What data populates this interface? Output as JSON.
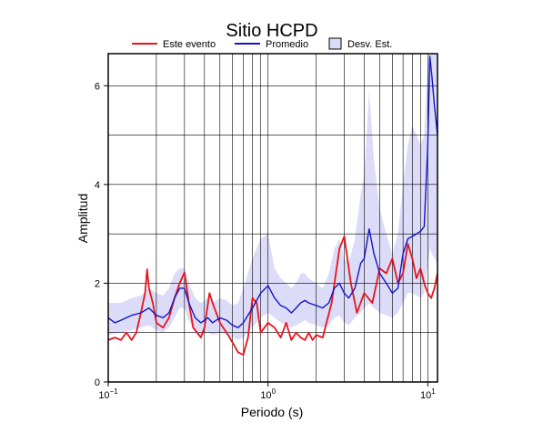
{
  "chart_data": {
    "type": "line",
    "title": "Sitio HCPD",
    "xlabel": "Periodo (s)",
    "ylabel": "Amplitud",
    "xscale": "log",
    "xlim": [
      0.1,
      11.5
    ],
    "ylim": [
      0,
      6.65
    ],
    "x_ticks": [
      {
        "value": 0.1,
        "base": "10",
        "exp": "−1"
      },
      {
        "value": 1,
        "base": "10",
        "exp": "0"
      },
      {
        "value": 10,
        "base": "10",
        "exp": "1"
      }
    ],
    "y_ticks": [
      0,
      2,
      4,
      6
    ],
    "grid": true,
    "legend_position": "top",
    "legend": [
      {
        "label": "Este evento",
        "kind": "line",
        "color": "#e8141b"
      },
      {
        "label": "Promedio",
        "kind": "line",
        "color": "#1414c8"
      },
      {
        "label": "Desv. Est.",
        "kind": "band",
        "color": "#dcdcf8"
      }
    ],
    "series": [
      {
        "name": "Este evento",
        "color": "#e8141b",
        "points": [
          [
            0.1,
            0.85
          ],
          [
            0.11,
            0.9
          ],
          [
            0.12,
            0.85
          ],
          [
            0.13,
            1.0
          ],
          [
            0.14,
            0.85
          ],
          [
            0.15,
            1.0
          ],
          [
            0.16,
            1.4
          ],
          [
            0.17,
            1.8
          ],
          [
            0.175,
            2.28
          ],
          [
            0.18,
            1.9
          ],
          [
            0.19,
            1.6
          ],
          [
            0.2,
            1.2
          ],
          [
            0.22,
            1.1
          ],
          [
            0.24,
            1.3
          ],
          [
            0.26,
            1.7
          ],
          [
            0.28,
            2.0
          ],
          [
            0.3,
            2.22
          ],
          [
            0.32,
            1.6
          ],
          [
            0.34,
            1.1
          ],
          [
            0.36,
            1.0
          ],
          [
            0.38,
            0.9
          ],
          [
            0.4,
            1.1
          ],
          [
            0.43,
            1.8
          ],
          [
            0.45,
            1.6
          ],
          [
            0.5,
            1.2
          ],
          [
            0.55,
            1.0
          ],
          [
            0.6,
            0.8
          ],
          [
            0.65,
            0.6
          ],
          [
            0.7,
            0.55
          ],
          [
            0.75,
            0.9
          ],
          [
            0.8,
            1.7
          ],
          [
            0.85,
            1.6
          ],
          [
            0.9,
            1.0
          ],
          [
            1.0,
            1.2
          ],
          [
            1.1,
            1.1
          ],
          [
            1.2,
            0.9
          ],
          [
            1.3,
            1.2
          ],
          [
            1.4,
            0.85
          ],
          [
            1.5,
            1.0
          ],
          [
            1.6,
            0.9
          ],
          [
            1.7,
            0.85
          ],
          [
            1.8,
            1.0
          ],
          [
            1.9,
            0.85
          ],
          [
            2.0,
            0.95
          ],
          [
            2.2,
            0.9
          ],
          [
            2.5,
            1.6
          ],
          [
            2.8,
            2.7
          ],
          [
            3.0,
            2.95
          ],
          [
            3.3,
            2.0
          ],
          [
            3.6,
            1.4
          ],
          [
            4.0,
            1.8
          ],
          [
            4.5,
            1.6
          ],
          [
            5.0,
            2.3
          ],
          [
            5.5,
            2.2
          ],
          [
            6.0,
            2.5
          ],
          [
            6.5,
            2.0
          ],
          [
            7.0,
            2.2
          ],
          [
            7.5,
            2.8
          ],
          [
            8.0,
            2.5
          ],
          [
            8.5,
            2.1
          ],
          [
            9.0,
            2.3
          ],
          [
            9.5,
            2.0
          ],
          [
            10.0,
            1.8
          ],
          [
            10.5,
            1.7
          ],
          [
            11.0,
            1.9
          ],
          [
            11.5,
            2.2
          ]
        ]
      },
      {
        "name": "Promedio",
        "color": "#1414c8",
        "points": [
          [
            0.1,
            1.3
          ],
          [
            0.11,
            1.2
          ],
          [
            0.12,
            1.25
          ],
          [
            0.14,
            1.35
          ],
          [
            0.16,
            1.4
          ],
          [
            0.18,
            1.5
          ],
          [
            0.2,
            1.35
          ],
          [
            0.22,
            1.3
          ],
          [
            0.24,
            1.4
          ],
          [
            0.26,
            1.7
          ],
          [
            0.28,
            1.9
          ],
          [
            0.3,
            1.9
          ],
          [
            0.32,
            1.6
          ],
          [
            0.35,
            1.3
          ],
          [
            0.38,
            1.2
          ],
          [
            0.42,
            1.3
          ],
          [
            0.45,
            1.2
          ],
          [
            0.5,
            1.3
          ],
          [
            0.55,
            1.25
          ],
          [
            0.6,
            1.15
          ],
          [
            0.65,
            1.1
          ],
          [
            0.7,
            1.2
          ],
          [
            0.8,
            1.5
          ],
          [
            0.9,
            1.8
          ],
          [
            1.0,
            1.95
          ],
          [
            1.1,
            1.7
          ],
          [
            1.2,
            1.55
          ],
          [
            1.3,
            1.5
          ],
          [
            1.4,
            1.4
          ],
          [
            1.5,
            1.5
          ],
          [
            1.6,
            1.6
          ],
          [
            1.7,
            1.65
          ],
          [
            1.8,
            1.6
          ],
          [
            2.0,
            1.55
          ],
          [
            2.2,
            1.5
          ],
          [
            2.4,
            1.6
          ],
          [
            2.6,
            1.9
          ],
          [
            2.8,
            2.0
          ],
          [
            3.0,
            1.8
          ],
          [
            3.2,
            1.7
          ],
          [
            3.5,
            1.9
          ],
          [
            3.8,
            2.4
          ],
          [
            4.0,
            2.5
          ],
          [
            4.3,
            3.1
          ],
          [
            4.6,
            2.6
          ],
          [
            5.0,
            2.2
          ],
          [
            5.5,
            2.0
          ],
          [
            6.0,
            1.8
          ],
          [
            6.5,
            1.9
          ],
          [
            7.0,
            2.6
          ],
          [
            7.5,
            2.9
          ],
          [
            8.0,
            2.95
          ],
          [
            8.5,
            3.0
          ],
          [
            9.0,
            3.05
          ],
          [
            9.5,
            3.15
          ],
          [
            10.0,
            4.8
          ],
          [
            10.3,
            6.6
          ],
          [
            10.6,
            6.2
          ],
          [
            11.0,
            5.6
          ],
          [
            11.5,
            5.0
          ]
        ]
      }
    ],
    "std_band": [
      [
        0.1,
        0.95,
        1.6
      ],
      [
        0.12,
        1.0,
        1.6
      ],
      [
        0.14,
        1.05,
        1.7
      ],
      [
        0.16,
        1.1,
        1.75
      ],
      [
        0.18,
        1.15,
        1.9
      ],
      [
        0.2,
        1.05,
        1.8
      ],
      [
        0.22,
        1.0,
        1.75
      ],
      [
        0.24,
        1.1,
        1.9
      ],
      [
        0.26,
        1.3,
        2.2
      ],
      [
        0.28,
        1.5,
        2.3
      ],
      [
        0.3,
        1.5,
        2.3
      ],
      [
        0.32,
        1.25,
        2.0
      ],
      [
        0.35,
        1.0,
        1.7
      ],
      [
        0.38,
        0.95,
        1.6
      ],
      [
        0.42,
        1.0,
        1.7
      ],
      [
        0.45,
        0.95,
        1.6
      ],
      [
        0.5,
        1.0,
        1.7
      ],
      [
        0.55,
        0.95,
        1.65
      ],
      [
        0.6,
        0.9,
        1.55
      ],
      [
        0.65,
        0.85,
        1.6
      ],
      [
        0.7,
        0.9,
        1.9
      ],
      [
        0.8,
        1.1,
        2.5
      ],
      [
        0.9,
        1.3,
        2.9
      ],
      [
        1.0,
        1.4,
        3.0
      ],
      [
        1.1,
        1.3,
        2.3
      ],
      [
        1.2,
        1.2,
        2.1
      ],
      [
        1.3,
        1.15,
        2.0
      ],
      [
        1.4,
        1.1,
        1.9
      ],
      [
        1.5,
        1.15,
        2.0
      ],
      [
        1.6,
        1.2,
        2.2
      ],
      [
        1.7,
        1.25,
        2.2
      ],
      [
        1.8,
        1.2,
        2.1
      ],
      [
        2.0,
        1.15,
        2.0
      ],
      [
        2.2,
        1.1,
        1.9
      ],
      [
        2.4,
        1.15,
        2.2
      ],
      [
        2.6,
        1.3,
        2.7
      ],
      [
        2.8,
        1.35,
        2.9
      ],
      [
        3.0,
        1.2,
        2.5
      ],
      [
        3.2,
        1.15,
        2.4
      ],
      [
        3.5,
        1.3,
        2.9
      ],
      [
        3.8,
        1.4,
        3.8
      ],
      [
        4.0,
        1.5,
        4.2
      ],
      [
        4.3,
        1.6,
        5.9
      ],
      [
        4.6,
        1.5,
        4.5
      ],
      [
        5.0,
        1.4,
        3.5
      ],
      [
        5.5,
        1.35,
        3.0
      ],
      [
        6.0,
        1.3,
        2.6
      ],
      [
        6.5,
        1.4,
        3.0
      ],
      [
        7.0,
        1.6,
        4.0
      ],
      [
        7.5,
        1.8,
        4.8
      ],
      [
        8.0,
        1.8,
        5.2
      ],
      [
        8.5,
        1.75,
        5.0
      ],
      [
        9.0,
        1.7,
        4.8
      ],
      [
        9.5,
        1.8,
        5.0
      ],
      [
        10.0,
        2.4,
        6.5
      ],
      [
        10.3,
        2.7,
        6.65
      ],
      [
        10.6,
        2.6,
        6.65
      ],
      [
        11.0,
        2.5,
        6.65
      ],
      [
        11.5,
        2.4,
        6.65
      ]
    ]
  }
}
